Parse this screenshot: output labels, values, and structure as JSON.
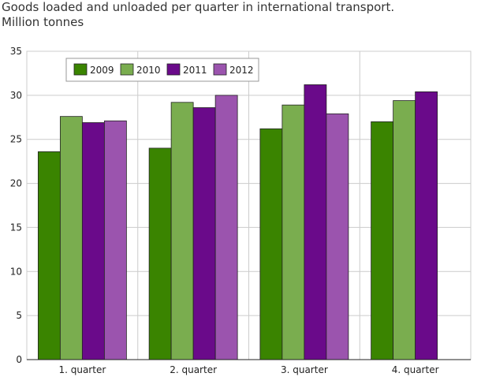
{
  "chart_data": {
    "type": "bar",
    "title": "Goods loaded and unloaded per quarter in international transport.",
    "subtitle": "Million tonnes",
    "categories": [
      "1. quarter",
      "2. quarter",
      "3. quarter",
      "4. quarter"
    ],
    "series": [
      {
        "name": "2009",
        "color": "#3a8400",
        "values": [
          23.6,
          24.0,
          26.2,
          27.0
        ]
      },
      {
        "name": "2010",
        "color": "#7aad4f",
        "values": [
          27.6,
          29.2,
          28.9,
          29.4
        ]
      },
      {
        "name": "2011",
        "color": "#6a0a8a",
        "values": [
          26.9,
          28.6,
          31.2,
          30.4
        ]
      },
      {
        "name": "2012",
        "color": "#9b54ae",
        "values": [
          27.1,
          30.0,
          27.9,
          null
        ]
      }
    ],
    "ylim": [
      0,
      35
    ],
    "yticks": [
      0,
      5,
      10,
      15,
      20,
      25,
      30,
      35
    ],
    "grid": true
  }
}
